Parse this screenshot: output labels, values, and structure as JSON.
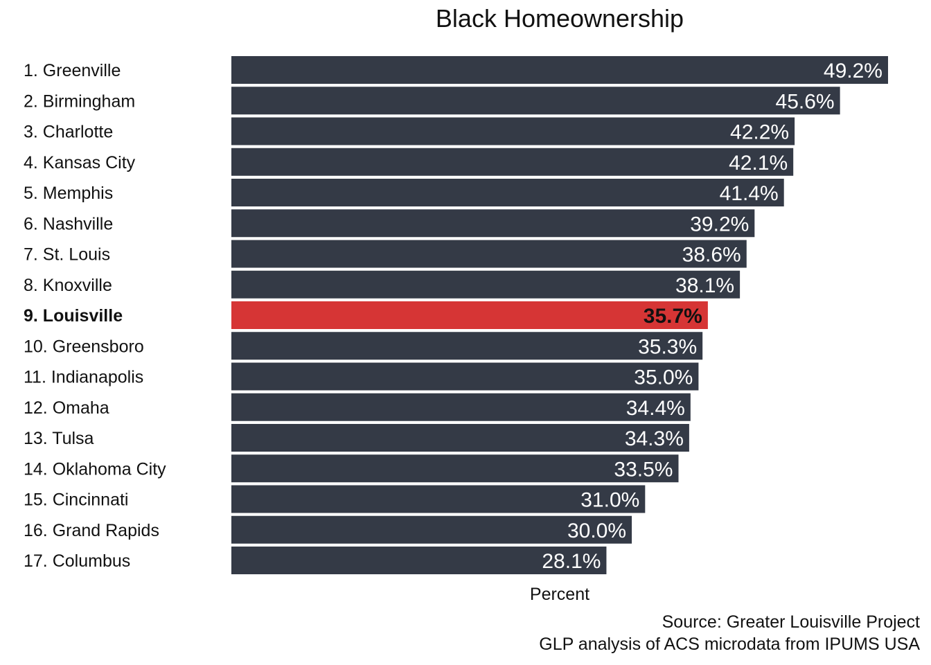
{
  "chart_data": {
    "type": "bar",
    "orientation": "horizontal",
    "title": "Black Homeownership",
    "xlabel": "Percent",
    "ylabel": "",
    "xlim": [
      0,
      49.2
    ],
    "categories": [
      "1. Greenville",
      "2. Birmingham",
      "3. Charlotte",
      "4. Kansas City",
      "5. Memphis",
      "6. Nashville",
      "7. St. Louis",
      "8. Knoxville",
      "9. Louisville",
      "10. Greensboro",
      "11. Indianapolis",
      "12. Omaha",
      "13. Tulsa",
      "14. Oklahoma City",
      "15. Cincinnati",
      "16. Grand Rapids",
      "17. Columbus"
    ],
    "values": [
      49.2,
      45.6,
      42.2,
      42.1,
      41.4,
      39.2,
      38.6,
      38.1,
      35.7,
      35.3,
      35.0,
      34.4,
      34.3,
      33.5,
      31.0,
      30.0,
      28.1
    ],
    "value_labels": [
      "49.2%",
      "45.6%",
      "42.2%",
      "42.1%",
      "41.4%",
      "39.2%",
      "38.6%",
      "38.1%",
      "35.7%",
      "35.3%",
      "35.0%",
      "34.4%",
      "34.3%",
      "33.5%",
      "31.0%",
      "30.0%",
      "28.1%"
    ],
    "highlight_category": "9. Louisville",
    "colors": {
      "bar": "#343a46",
      "highlight": "#d63535",
      "label_on_bar": "#ffffff",
      "label_on_highlight": "#111111"
    },
    "grid": false,
    "legend": "none"
  },
  "source": {
    "line1": "Source: Greater Louisville Project",
    "line2": "GLP analysis of ACS microdata from IPUMS USA"
  }
}
